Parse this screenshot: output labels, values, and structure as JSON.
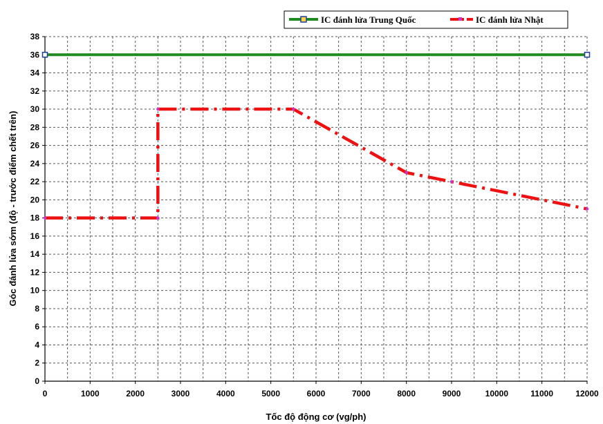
{
  "chart_data": {
    "type": "line",
    "xlabel": "Tốc độ động cơ (vg/ph)",
    "ylabel": "Góc đánh lửa sớm (độ - trước điểm chết trên)",
    "xlim": [
      0,
      12000
    ],
    "ylim": [
      0,
      38
    ],
    "xticks": [
      0,
      1000,
      2000,
      3000,
      4000,
      5000,
      6000,
      7000,
      8000,
      9000,
      10000,
      11000,
      12000
    ],
    "yticks": [
      0,
      2,
      4,
      6,
      8,
      10,
      12,
      14,
      16,
      18,
      20,
      22,
      24,
      26,
      28,
      30,
      32,
      34,
      36,
      38
    ],
    "grid": true,
    "legend_position": "top-right",
    "series": [
      {
        "name": "IC đánh lửa Trung Quốc",
        "color": "#1f8a1f",
        "marker_color": "#1a3fa0",
        "line_style": "solid",
        "points": [
          [
            0,
            36
          ],
          [
            12000,
            36
          ]
        ]
      },
      {
        "name": "IC đánh lửa Nhật",
        "color": "#ee1111",
        "marker_color": "#cc33cc",
        "line_style": "dash-dot",
        "points": [
          [
            0,
            18
          ],
          [
            2500,
            18
          ],
          [
            2500,
            30
          ],
          [
            5500,
            30
          ],
          [
            8000,
            23
          ],
          [
            9000,
            22
          ],
          [
            12000,
            19
          ]
        ]
      }
    ]
  }
}
